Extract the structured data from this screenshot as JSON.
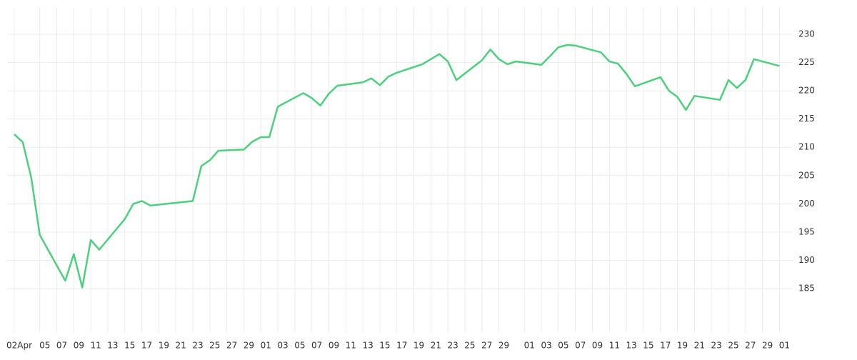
{
  "chart_data": {
    "type": "line",
    "x": [
      2,
      3,
      4,
      5,
      8,
      9,
      10,
      11,
      12,
      15,
      16,
      17,
      18,
      23,
      24,
      25,
      26,
      29,
      30,
      31,
      32,
      33,
      36,
      37,
      38,
      39,
      40,
      43,
      44,
      45,
      46,
      47,
      50,
      51,
      52,
      53,
      54,
      57,
      58,
      59,
      60,
      61,
      64,
      65,
      66,
      67,
      68,
      71,
      72,
      73,
      74,
      75,
      78,
      79,
      80,
      81,
      82,
      85,
      86,
      87,
      88,
      89,
      92
    ],
    "series": [
      {
        "color": "#4cd07d",
        "values": [
          212.3,
          210.9,
          204.6,
          194.5,
          186.4,
          191.1,
          185.2,
          193.6,
          191.9,
          197.3,
          200.0,
          200.5,
          199.7,
          200.5,
          206.7,
          207.7,
          209.4,
          209.6,
          211.0,
          211.8,
          211.8,
          217.2,
          219.6,
          218.7,
          217.4,
          219.5,
          220.9,
          221.5,
          222.2,
          221.0,
          222.5,
          223.2,
          224.7,
          225.6,
          226.5,
          225.2,
          221.9,
          225.4,
          227.3,
          225.6,
          224.7,
          225.2,
          224.6,
          226.1,
          227.7,
          228.1,
          228.0,
          226.8,
          225.2,
          224.8,
          223.0,
          220.8,
          222.4,
          220.0,
          218.9,
          216.6,
          219.1,
          218.4,
          221.9,
          220.5,
          221.9,
          225.6,
          224.4
        ]
      }
    ],
    "xlim": [
      1.16,
      93.56
    ],
    "xticks": [
      {
        "value": 2,
        "label": "02Apr"
      },
      {
        "value": 5,
        "label": "05"
      },
      {
        "value": 7,
        "label": "07"
      },
      {
        "value": 9,
        "label": "09"
      },
      {
        "value": 11,
        "label": "11"
      },
      {
        "value": 13,
        "label": "13"
      },
      {
        "value": 15,
        "label": "15"
      },
      {
        "value": 17,
        "label": "17"
      },
      {
        "value": 19,
        "label": "19"
      },
      {
        "value": 21,
        "label": "21"
      },
      {
        "value": 23,
        "label": "23"
      },
      {
        "value": 25,
        "label": "25"
      },
      {
        "value": 27,
        "label": "27"
      },
      {
        "value": 29,
        "label": "29"
      },
      {
        "value": 31,
        "label": "01"
      },
      {
        "value": 33,
        "label": "03"
      },
      {
        "value": 35,
        "label": "05"
      },
      {
        "value": 37,
        "label": "07"
      },
      {
        "value": 39,
        "label": "09"
      },
      {
        "value": 41,
        "label": "11"
      },
      {
        "value": 43,
        "label": "13"
      },
      {
        "value": 45,
        "label": "15"
      },
      {
        "value": 47,
        "label": "17"
      },
      {
        "value": 49,
        "label": "19"
      },
      {
        "value": 51,
        "label": "21"
      },
      {
        "value": 53,
        "label": "23"
      },
      {
        "value": 55,
        "label": "25"
      },
      {
        "value": 57,
        "label": "27"
      },
      {
        "value": 59,
        "label": "29"
      },
      {
        "value": 62,
        "label": "01"
      },
      {
        "value": 64,
        "label": "03"
      },
      {
        "value": 66,
        "label": "05"
      },
      {
        "value": 68,
        "label": "07"
      },
      {
        "value": 70,
        "label": "09"
      },
      {
        "value": 72,
        "label": "11"
      },
      {
        "value": 74,
        "label": "13"
      },
      {
        "value": 76,
        "label": "15"
      },
      {
        "value": 78,
        "label": "17"
      },
      {
        "value": 80,
        "label": "19"
      },
      {
        "value": 82,
        "label": "21"
      },
      {
        "value": 84,
        "label": "23"
      },
      {
        "value": 86,
        "label": "25"
      },
      {
        "value": 88,
        "label": "27"
      },
      {
        "value": 90,
        "label": "29"
      },
      {
        "value": 92,
        "label": "01"
      }
    ],
    "ylim": [
      177.3,
      234.8
    ],
    "yticks": [
      185,
      190,
      195,
      200,
      205,
      210,
      215,
      220,
      225,
      230
    ],
    "grid": true
  }
}
